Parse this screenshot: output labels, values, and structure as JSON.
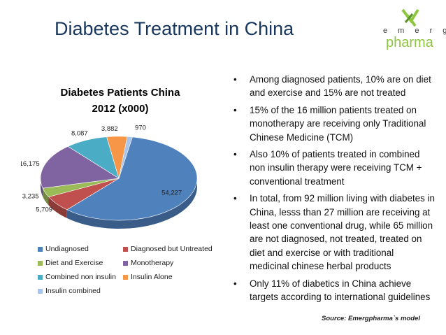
{
  "slide": {
    "title": "Diabetes Treatment in China",
    "source": "Source: Emergpharma`s model"
  },
  "logo": {
    "row": "e m e r g",
    "word": "pharma"
  },
  "bullets": [
    "Among diagnosed patients, 10% are on diet and exercise and 15% are not treated",
    "15% of the 16 million patients treated on monotherapy are receiving only Traditional Chinese Medicine (TCM)",
    "Also 10% of patients treated in combined non insulin therapy were receiving TCM + conventional treatment",
    "In total, from 92 million living with diabetes in China, lesss than 27 million are receiving at least one conventional drug, while 65 million are not diagnosed, not treated, treated on diet and exercise or with traditional medicinal chinese herbal products",
    "Only 11% of diabetics in China achieve targets according to international guidelines"
  ],
  "bullet_symbol": "•",
  "chart_data": {
    "type": "pie",
    "title": "Diabetes Patients China",
    "subtitle": "2012 (x000)",
    "categories": [
      "Undiagnosed",
      "Diagnosed but Untreated",
      "Diet and Exercise",
      "Monotherapy",
      "Combined non insulin",
      "Insulin Alone",
      "Insulin combined"
    ],
    "values": [
      54227,
      5709,
      3235,
      16175,
      8087,
      3882,
      970
    ],
    "data_labels": [
      "54,227",
      "5,709",
      "3,235",
      "16,175",
      "8,087",
      "3,882",
      "970"
    ],
    "colors": [
      "#4f81bd",
      "#c0504d",
      "#9bbb59",
      "#8064a2",
      "#4bacc6",
      "#f79646",
      "#a9c4e8"
    ],
    "legend_position": "bottom",
    "style": "3d"
  }
}
